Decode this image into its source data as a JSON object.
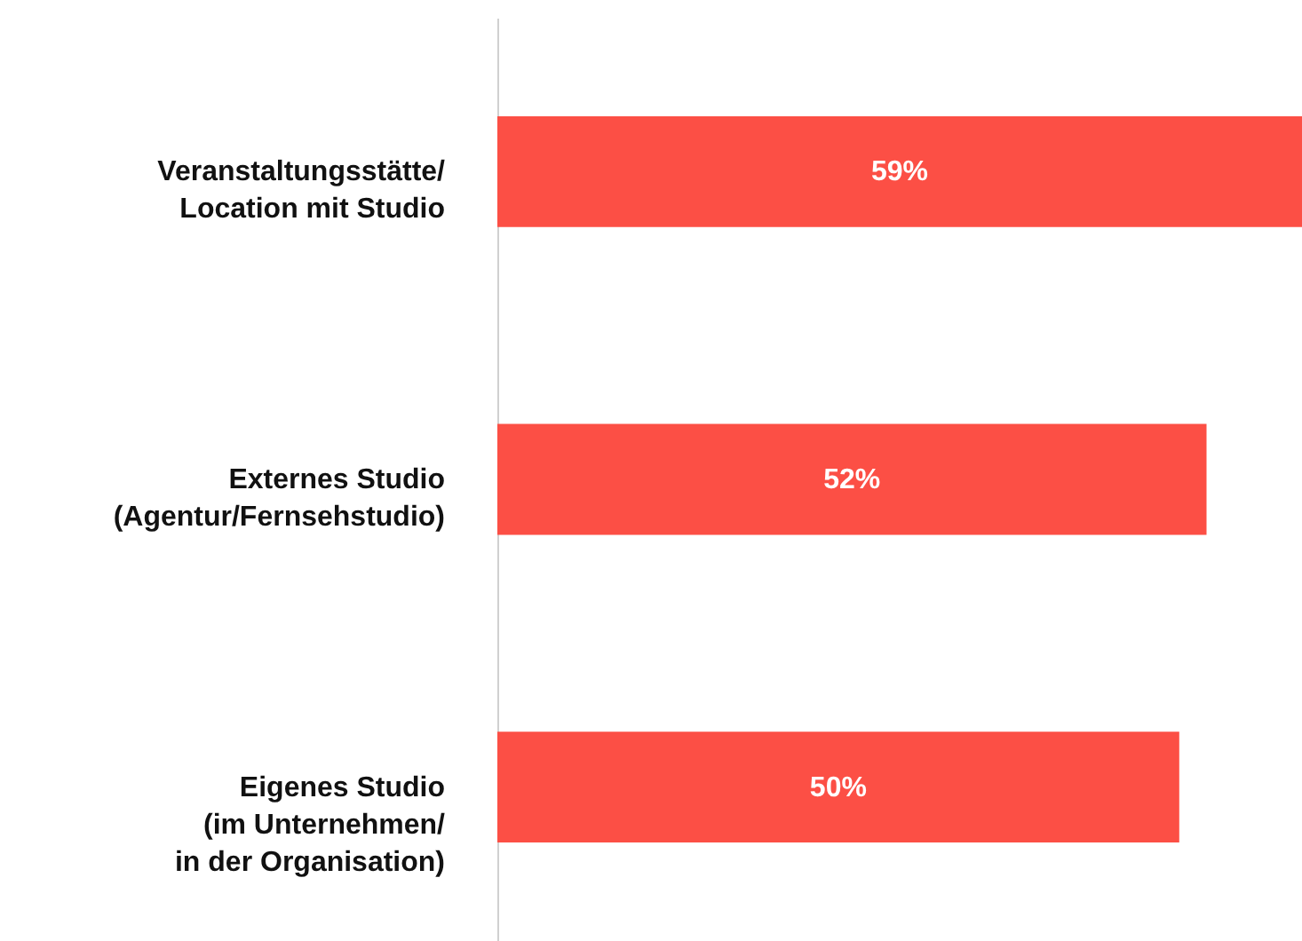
{
  "chart_data": {
    "type": "bar",
    "orientation": "horizontal",
    "categories": [
      "Veranstaltungsstätte/\nLocation mit Studio",
      "Externes Studio\n(Agentur/Fernsehstudio)",
      "Eigenes Studio\n(im Unternehmen/\nin der Organisation)"
    ],
    "values": [
      59,
      52,
      50
    ],
    "value_labels": [
      "59%",
      "52%",
      "50%"
    ],
    "color": "#fc4f45",
    "xlim": [
      0,
      59
    ],
    "tick_labels": "y"
  }
}
